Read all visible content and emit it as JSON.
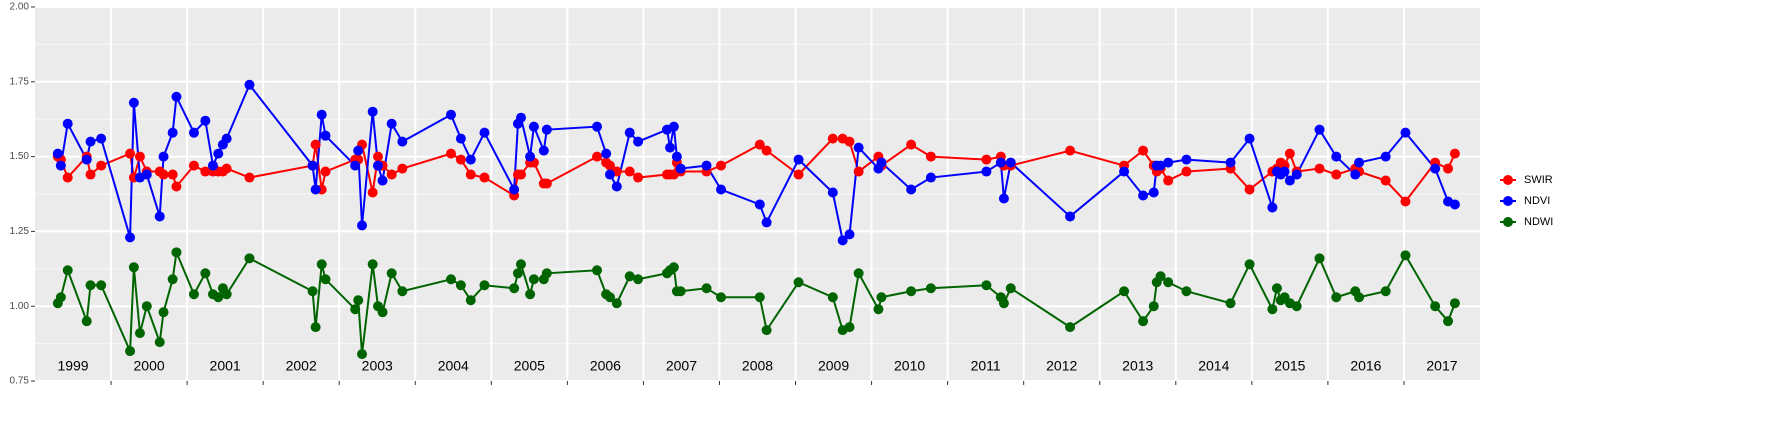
{
  "chart_data": {
    "type": "line",
    "x": [
      1999.3,
      1999.34,
      1999.43,
      1999.68,
      1999.73,
      1999.87,
      2000.25,
      2000.3,
      2000.38,
      2000.47,
      2000.64,
      2000.69,
      2000.81,
      2000.86,
      2001.09,
      2001.24,
      2001.34,
      2001.41,
      2001.47,
      2001.52,
      2001.82,
      2002.65,
      2002.69,
      2002.77,
      2002.82,
      2003.21,
      2003.25,
      2003.3,
      2003.44,
      2003.51,
      2003.57,
      2003.69,
      2003.83,
      2004.47,
      2004.6,
      2004.73,
      2004.91,
      2005.3,
      2005.35,
      2005.39,
      2005.51,
      2005.56,
      2005.69,
      2005.73,
      2006.39,
      2006.51,
      2006.56,
      2006.65,
      2006.82,
      2006.93,
      2007.31,
      2007.35,
      2007.4,
      2007.44,
      2007.49,
      2007.83,
      2008.02,
      2008.53,
      2008.62,
      2009.04,
      2009.49,
      2009.62,
      2009.71,
      2009.83,
      2010.09,
      2010.13,
      2010.52,
      2010.78,
      2011.51,
      2011.7,
      2011.74,
      2011.83,
      2012.61,
      2013.32,
      2013.57,
      2013.71,
      2013.75,
      2013.8,
      2013.9,
      2014.14,
      2014.72,
      2014.97,
      2015.27,
      2015.33,
      2015.38,
      2015.43,
      2015.5,
      2015.59,
      2015.89,
      2016.11,
      2016.36,
      2016.41,
      2016.76,
      2017.02,
      2017.41,
      2017.58,
      2017.67
    ],
    "series": [
      {
        "name": "SWIR",
        "color": "#ff0000",
        "values": [
          1.5,
          1.49,
          1.43,
          1.5,
          1.44,
          1.47,
          1.51,
          1.43,
          1.5,
          1.45,
          1.45,
          1.44,
          1.44,
          1.4,
          1.47,
          1.45,
          1.45,
          1.45,
          1.45,
          1.46,
          1.43,
          1.47,
          1.54,
          1.39,
          1.45,
          1.49,
          1.49,
          1.54,
          1.38,
          1.5,
          1.47,
          1.44,
          1.46,
          1.51,
          1.49,
          1.44,
          1.43,
          1.37,
          1.44,
          1.44,
          1.48,
          1.48,
          1.41,
          1.41,
          1.5,
          1.48,
          1.47,
          1.45,
          1.45,
          1.43,
          1.44,
          1.44,
          1.44,
          1.48,
          1.45,
          1.45,
          1.47,
          1.54,
          1.52,
          1.44,
          1.56,
          1.56,
          1.55,
          1.45,
          1.5,
          1.47,
          1.54,
          1.5,
          1.49,
          1.5,
          1.47,
          1.47,
          1.52,
          1.47,
          1.52,
          1.47,
          1.45,
          1.46,
          1.42,
          1.45,
          1.46,
          1.39,
          1.45,
          1.46,
          1.48,
          1.47,
          1.51,
          1.45,
          1.46,
          1.44,
          1.46,
          1.45,
          1.42,
          1.35,
          1.48,
          1.46,
          1.51
        ]
      },
      {
        "name": "NDVI",
        "color": "#0000ff",
        "values": [
          1.51,
          1.47,
          1.61,
          1.49,
          1.55,
          1.56,
          1.23,
          1.68,
          1.43,
          1.44,
          1.3,
          1.5,
          1.58,
          1.7,
          1.58,
          1.62,
          1.47,
          1.51,
          1.54,
          1.56,
          1.74,
          1.47,
          1.39,
          1.64,
          1.57,
          1.47,
          1.52,
          1.27,
          1.65,
          1.47,
          1.42,
          1.61,
          1.55,
          1.64,
          1.56,
          1.49,
          1.58,
          1.39,
          1.61,
          1.63,
          1.5,
          1.6,
          1.52,
          1.59,
          1.6,
          1.51,
          1.44,
          1.4,
          1.58,
          1.55,
          1.59,
          1.53,
          1.6,
          1.5,
          1.46,
          1.47,
          1.39,
          1.34,
          1.28,
          1.49,
          1.38,
          1.22,
          1.24,
          1.53,
          1.46,
          1.48,
          1.39,
          1.43,
          1.45,
          1.48,
          1.36,
          1.48,
          1.3,
          1.45,
          1.37,
          1.38,
          1.47,
          1.47,
          1.48,
          1.49,
          1.48,
          1.56,
          1.33,
          1.45,
          1.44,
          1.45,
          1.42,
          1.44,
          1.59,
          1.5,
          1.44,
          1.48,
          1.5,
          1.58,
          1.46,
          1.35,
          1.34
        ]
      },
      {
        "name": "NDWI",
        "color": "#006400",
        "values": [
          1.01,
          1.03,
          1.12,
          0.95,
          1.07,
          1.07,
          0.85,
          1.13,
          0.91,
          1.0,
          0.88,
          0.98,
          1.09,
          1.18,
          1.04,
          1.11,
          1.04,
          1.03,
          1.06,
          1.04,
          1.16,
          1.05,
          0.93,
          1.14,
          1.09,
          0.99,
          1.02,
          0.84,
          1.14,
          1.0,
          0.98,
          1.11,
          1.05,
          1.09,
          1.07,
          1.02,
          1.07,
          1.06,
          1.11,
          1.14,
          1.04,
          1.09,
          1.09,
          1.11,
          1.12,
          1.04,
          1.03,
          1.01,
          1.1,
          1.09,
          1.11,
          1.12,
          1.13,
          1.05,
          1.05,
          1.06,
          1.03,
          1.03,
          0.92,
          1.08,
          1.03,
          0.92,
          0.93,
          1.11,
          0.99,
          1.03,
          1.05,
          1.06,
          1.07,
          1.03,
          1.01,
          1.06,
          0.93,
          1.05,
          0.95,
          1.0,
          1.08,
          1.1,
          1.08,
          1.05,
          1.01,
          1.14,
          0.99,
          1.06,
          1.02,
          1.03,
          1.01,
          1.0,
          1.16,
          1.03,
          1.05,
          1.03,
          1.05,
          1.17,
          1.0,
          0.95,
          1.01
        ]
      }
    ],
    "year_labels": [
      "1999",
      "2000",
      "2001",
      "2002",
      "2003",
      "2004",
      "2005",
      "2006",
      "2007",
      "2008",
      "2009",
      "2010",
      "2011",
      "2012",
      "2013",
      "2014",
      "2015",
      "2016",
      "2017"
    ],
    "xlim": [
      1999,
      2018
    ],
    "xticks": [
      2000,
      2001,
      2002,
      2003,
      2004,
      2005,
      2006,
      2007,
      2008,
      2009,
      2010,
      2011,
      2012,
      2013,
      2014,
      2015,
      2016,
      2017
    ],
    "ylim": [
      0.75,
      2.0
    ],
    "yticks": [
      {
        "value": 0.75,
        "label": "0.75"
      },
      {
        "value": 1.0,
        "label": "1.00"
      },
      {
        "value": 1.25,
        "label": "1.25"
      },
      {
        "value": 1.5,
        "label": "1.50"
      },
      {
        "value": 1.75,
        "label": "1.75"
      },
      {
        "value": 2.0,
        "label": "2.00"
      }
    ],
    "grid": true,
    "legend": "right"
  }
}
